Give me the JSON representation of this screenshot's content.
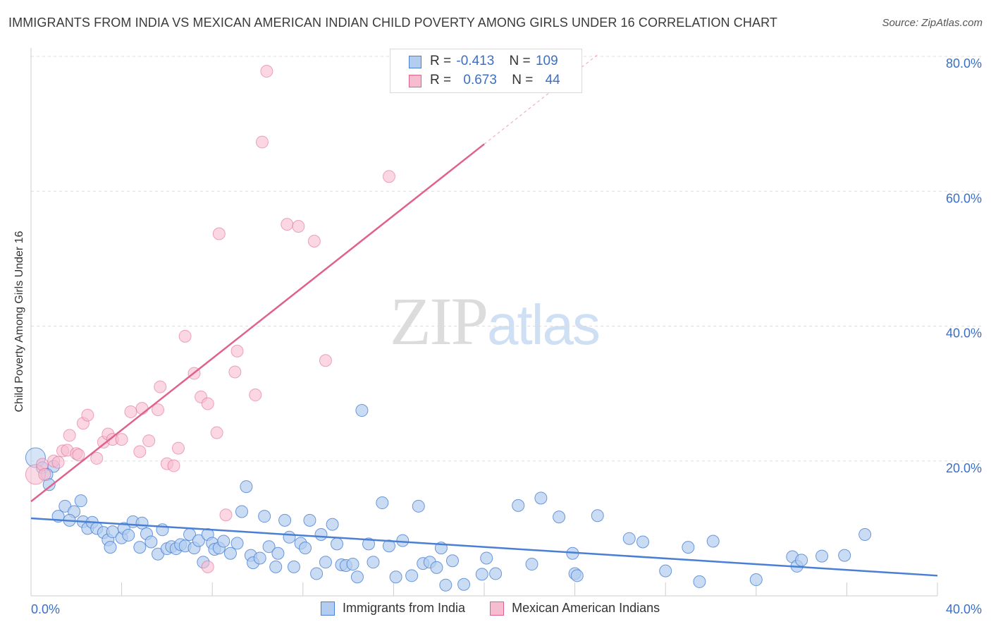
{
  "title": "IMMIGRANTS FROM INDIA VS MEXICAN AMERICAN INDIAN CHILD POVERTY AMONG GIRLS UNDER 16 CORRELATION CHART",
  "source": "Source: ZipAtlas.com",
  "watermark": {
    "zip": "ZIP",
    "atlas": "atlas"
  },
  "colors": {
    "blue": "#4a7fd4",
    "blue_fill": "#b3cdf0",
    "pink": "#e0628c",
    "pink_fill": "#f6bdd0",
    "grid": "#dddddd",
    "tick_label": "#3b6fc6"
  },
  "legend_top": [
    {
      "r_label": "R =",
      "r_value": "-0.413",
      "n_label": "N =",
      "n_value": "109",
      "color": "blue"
    },
    {
      "r_label": "R =",
      "r_value": "0.673",
      "n_label": "N =",
      "n_value": "44",
      "color": "pink"
    }
  ],
  "legend_bottom": [
    {
      "label": "Immigrants from India",
      "color": "blue"
    },
    {
      "label": "Mexican American Indians",
      "color": "pink"
    }
  ],
  "chart_data": {
    "type": "scatter",
    "title": "IMMIGRANTS FROM INDIA VS MEXICAN AMERICAN INDIAN CHILD POVERTY AMONG GIRLS UNDER 16 CORRELATION CHART",
    "xlabel": "",
    "ylabel": "Child Poverty Among Girls Under 16",
    "xlim": [
      0,
      40
    ],
    "ylim": [
      0,
      80
    ],
    "x_tick_labels": [
      "0.0%",
      "40.0%"
    ],
    "y_tick_labels": [
      "20.0%",
      "40.0%",
      "60.0%",
      "80.0%"
    ],
    "y_ticks": [
      20,
      40,
      60,
      80
    ],
    "grid": "horizontal dashed",
    "legend": "top-center",
    "series": [
      {
        "name": "Immigrants from India",
        "color": "blue",
        "trend": {
          "x": [
            0,
            40
          ],
          "y": [
            11.5,
            3.0
          ]
        },
        "points": [
          [
            0.2,
            20.5
          ],
          [
            0.5,
            19.0
          ],
          [
            1.0,
            19.2
          ],
          [
            0.7,
            18.0
          ],
          [
            0.8,
            16.5
          ],
          [
            1.5,
            13.3
          ],
          [
            1.2,
            11.8
          ],
          [
            1.9,
            12.5
          ],
          [
            1.7,
            11.2
          ],
          [
            2.2,
            14.1
          ],
          [
            2.3,
            11.0
          ],
          [
            2.5,
            10.0
          ],
          [
            2.7,
            10.9
          ],
          [
            2.9,
            10.0
          ],
          [
            3.2,
            9.4
          ],
          [
            3.4,
            8.3
          ],
          [
            3.5,
            7.2
          ],
          [
            3.6,
            9.5
          ],
          [
            4.0,
            8.6
          ],
          [
            4.1,
            10.0
          ],
          [
            4.3,
            9.0
          ],
          [
            4.5,
            11.0
          ],
          [
            4.8,
            7.2
          ],
          [
            4.9,
            10.8
          ],
          [
            5.1,
            9.2
          ],
          [
            5.3,
            8.0
          ],
          [
            5.6,
            6.2
          ],
          [
            5.8,
            9.8
          ],
          [
            6.0,
            7.0
          ],
          [
            6.2,
            7.3
          ],
          [
            6.4,
            7.0
          ],
          [
            6.6,
            7.6
          ],
          [
            6.8,
            7.4
          ],
          [
            7.0,
            9.1
          ],
          [
            7.2,
            7.1
          ],
          [
            7.4,
            8.2
          ],
          [
            7.6,
            5.0
          ],
          [
            7.8,
            9.1
          ],
          [
            8.0,
            7.8
          ],
          [
            8.1,
            6.9
          ],
          [
            8.3,
            7.1
          ],
          [
            8.5,
            8.1
          ],
          [
            8.8,
            6.3
          ],
          [
            9.1,
            7.8
          ],
          [
            9.3,
            12.5
          ],
          [
            9.5,
            16.2
          ],
          [
            9.7,
            6.0
          ],
          [
            9.8,
            4.9
          ],
          [
            10.1,
            5.6
          ],
          [
            10.3,
            11.8
          ],
          [
            10.5,
            7.3
          ],
          [
            10.8,
            4.3
          ],
          [
            10.9,
            6.3
          ],
          [
            11.2,
            11.2
          ],
          [
            11.4,
            8.7
          ],
          [
            11.6,
            4.3
          ],
          [
            11.9,
            7.8
          ],
          [
            12.1,
            7.1
          ],
          [
            12.3,
            11.2
          ],
          [
            12.6,
            3.3
          ],
          [
            12.8,
            9.1
          ],
          [
            13.0,
            5.0
          ],
          [
            13.3,
            10.6
          ],
          [
            13.5,
            7.7
          ],
          [
            13.7,
            4.6
          ],
          [
            13.9,
            4.5
          ],
          [
            14.2,
            4.7
          ],
          [
            14.4,
            2.8
          ],
          [
            14.6,
            27.5
          ],
          [
            14.9,
            7.7
          ],
          [
            15.1,
            5.0
          ],
          [
            15.5,
            13.8
          ],
          [
            15.8,
            7.4
          ],
          [
            16.1,
            2.8
          ],
          [
            16.4,
            8.2
          ],
          [
            16.8,
            3.0
          ],
          [
            17.1,
            13.3
          ],
          [
            17.3,
            4.8
          ],
          [
            17.6,
            5.0
          ],
          [
            17.9,
            4.2
          ],
          [
            18.1,
            7.1
          ],
          [
            18.3,
            1.6
          ],
          [
            18.6,
            5.2
          ],
          [
            19.1,
            1.7
          ],
          [
            19.9,
            3.2
          ],
          [
            20.1,
            5.6
          ],
          [
            20.5,
            3.3
          ],
          [
            21.5,
            13.4
          ],
          [
            22.1,
            4.7
          ],
          [
            22.5,
            14.5
          ],
          [
            23.3,
            11.7
          ],
          [
            23.9,
            6.3
          ],
          [
            24.0,
            3.3
          ],
          [
            24.1,
            3.0
          ],
          [
            25.0,
            11.9
          ],
          [
            26.4,
            8.5
          ],
          [
            27.0,
            8.0
          ],
          [
            28.0,
            3.7
          ],
          [
            29.0,
            7.2
          ],
          [
            29.5,
            2.1
          ],
          [
            30.1,
            8.1
          ],
          [
            32.0,
            2.4
          ],
          [
            33.6,
            5.8
          ],
          [
            33.8,
            4.4
          ],
          [
            34.0,
            5.3
          ],
          [
            34.9,
            5.9
          ],
          [
            35.9,
            6.0
          ],
          [
            36.8,
            9.1
          ]
        ]
      },
      {
        "name": "Mexican American Indians",
        "color": "pink",
        "trend": {
          "x": [
            0,
            20
          ],
          "y": [
            14.0,
            67.0
          ]
        },
        "points": [
          [
            0.2,
            18.0
          ],
          [
            0.5,
            19.5
          ],
          [
            0.6,
            18.0
          ],
          [
            1.0,
            20.0
          ],
          [
            1.2,
            19.8
          ],
          [
            1.4,
            21.5
          ],
          [
            1.6,
            21.6
          ],
          [
            1.7,
            23.8
          ],
          [
            2.0,
            21.1
          ],
          [
            2.1,
            20.9
          ],
          [
            2.3,
            25.6
          ],
          [
            2.5,
            26.8
          ],
          [
            2.9,
            20.4
          ],
          [
            3.2,
            22.8
          ],
          [
            3.4,
            24.0
          ],
          [
            3.6,
            23.2
          ],
          [
            4.0,
            23.2
          ],
          [
            4.4,
            27.3
          ],
          [
            4.8,
            21.4
          ],
          [
            4.9,
            27.8
          ],
          [
            5.2,
            23.0
          ],
          [
            5.6,
            27.6
          ],
          [
            5.7,
            31.0
          ],
          [
            6.0,
            19.6
          ],
          [
            6.3,
            19.3
          ],
          [
            6.5,
            21.9
          ],
          [
            6.8,
            38.5
          ],
          [
            7.2,
            33.0
          ],
          [
            7.5,
            29.5
          ],
          [
            7.8,
            28.5
          ],
          [
            8.2,
            24.2
          ],
          [
            8.3,
            53.7
          ],
          [
            8.6,
            12.0
          ],
          [
            7.8,
            4.3
          ],
          [
            9.0,
            33.2
          ],
          [
            9.1,
            36.3
          ],
          [
            9.9,
            29.8
          ],
          [
            10.2,
            67.3
          ],
          [
            10.4,
            77.8
          ],
          [
            11.3,
            55.1
          ],
          [
            11.8,
            54.8
          ],
          [
            12.5,
            52.6
          ],
          [
            13.0,
            34.9
          ],
          [
            15.8,
            62.2
          ]
        ]
      }
    ]
  }
}
